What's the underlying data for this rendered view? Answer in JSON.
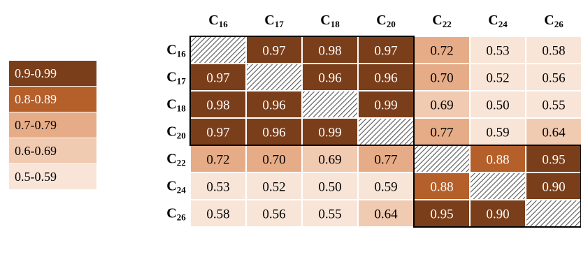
{
  "legend": {
    "bins": [
      {
        "label": "0.9-0.99",
        "color": "#7a3e1a",
        "text_color": "#ffffff"
      },
      {
        "label": "0.8-0.89",
        "color": "#b55f2a",
        "text_color": "#ffffff"
      },
      {
        "label": "0.7-0.79",
        "color": "#e6ac87",
        "text_color": "#000000"
      },
      {
        "label": "0.6-0.69",
        "color": "#f0cab1",
        "text_color": "#000000"
      },
      {
        "label": "0.5-0.59",
        "color": "#f8e5d8",
        "text_color": "#000000"
      }
    ]
  },
  "colors": {
    "hatch_stroke": "#555555",
    "block_border": "#000000"
  },
  "chart_data": {
    "type": "heatmap",
    "row_labels": [
      {
        "base": "C",
        "sub": "16"
      },
      {
        "base": "C",
        "sub": "17"
      },
      {
        "base": "C",
        "sub": "18"
      },
      {
        "base": "C",
        "sub": "20"
      },
      {
        "base": "C",
        "sub": "22"
      },
      {
        "base": "C",
        "sub": "24"
      },
      {
        "base": "C",
        "sub": "26"
      }
    ],
    "col_labels": [
      {
        "base": "C",
        "sub": "16"
      },
      {
        "base": "C",
        "sub": "17"
      },
      {
        "base": "C",
        "sub": "18"
      },
      {
        "base": "C",
        "sub": "20"
      },
      {
        "base": "C",
        "sub": "22"
      },
      {
        "base": "C",
        "sub": "24"
      },
      {
        "base": "C",
        "sub": "26"
      }
    ],
    "values": [
      [
        null,
        0.97,
        0.98,
        0.97,
        0.72,
        0.53,
        0.58
      ],
      [
        0.97,
        null,
        0.96,
        0.96,
        0.7,
        0.52,
        0.56
      ],
      [
        0.98,
        0.96,
        null,
        0.99,
        0.69,
        0.5,
        0.55
      ],
      [
        0.97,
        0.96,
        0.99,
        null,
        0.77,
        0.59,
        0.64
      ],
      [
        0.72,
        0.7,
        0.69,
        0.77,
        null,
        0.88,
        0.95
      ],
      [
        0.53,
        0.52,
        0.5,
        0.59,
        0.88,
        null,
        0.9
      ],
      [
        0.58,
        0.56,
        0.55,
        0.64,
        0.95,
        0.9,
        null
      ]
    ],
    "diagonal": "hatched",
    "block_groups": [
      [
        0,
        3
      ],
      [
        4,
        6
      ]
    ]
  }
}
